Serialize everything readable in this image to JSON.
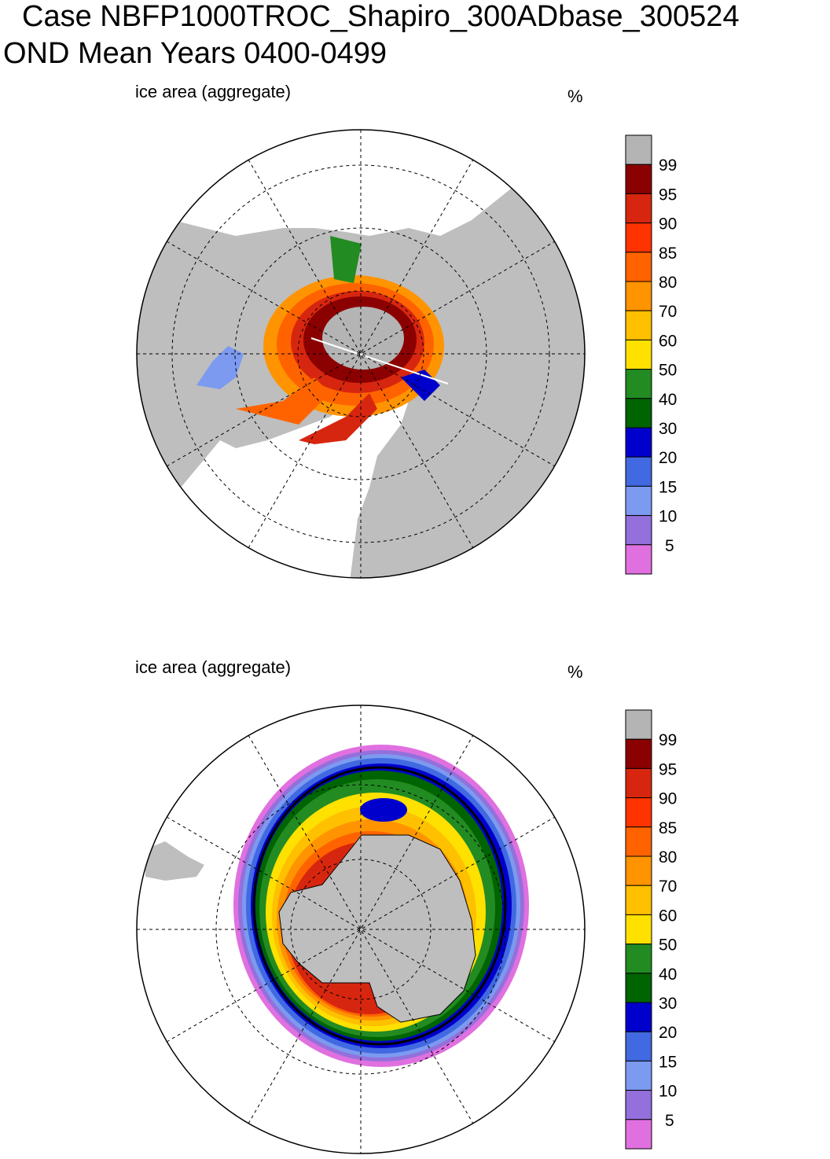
{
  "title": {
    "line1": "Case NBFP1000TROC_Shapiro_300ADbase_300524",
    "line2": "OND Mean    Years 0400-0499"
  },
  "panels": [
    {
      "name": "north",
      "label": "ice area  (aggregate)",
      "units": "%"
    },
    {
      "name": "south",
      "label": "ice area  (aggregate)",
      "units": "%"
    }
  ],
  "colorbar": {
    "levels": [
      "99",
      "95",
      "90",
      "85",
      "80",
      "70",
      "60",
      "50",
      "40",
      "30",
      "20",
      "15",
      "10",
      "5"
    ],
    "colors": [
      "#b4b4b4",
      "#8b0000",
      "#d7260f",
      "#ff3300",
      "#ff6300",
      "#ff9400",
      "#ffc000",
      "#ffe100",
      "#228b22",
      "#006400",
      "#0000cd",
      "#4169e1",
      "#7b9af0",
      "#9370db",
      "#e070e0"
    ]
  },
  "colors": {
    "land": "#bebebe",
    "ocean": "#ffffff"
  }
}
